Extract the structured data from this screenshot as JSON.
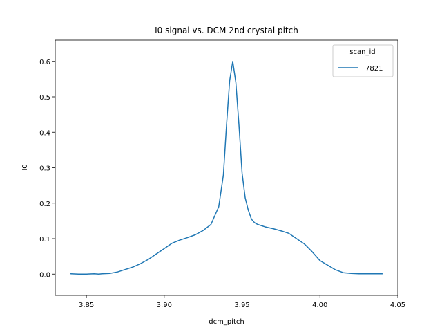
{
  "chart_data": {
    "type": "line",
    "title": "I0 signal vs. DCM 2nd crystal pitch",
    "xlabel": "dcm_pitch",
    "ylabel": "I0",
    "xlim": [
      3.83,
      4.05
    ],
    "ylim": [
      -0.06,
      0.66
    ],
    "xticks": [
      3.85,
      3.9,
      3.95,
      4.0,
      4.05
    ],
    "xtick_labels": [
      "3.85",
      "3.90",
      "3.95",
      "4.00",
      "4.05"
    ],
    "yticks": [
      0.0,
      0.1,
      0.2,
      0.3,
      0.4,
      0.5,
      0.6
    ],
    "ytick_labels": [
      "0.0",
      "0.1",
      "0.2",
      "0.3",
      "0.4",
      "0.5",
      "0.6"
    ],
    "grid": false,
    "legend": {
      "title": "scan_id",
      "placement": "top-right"
    },
    "series": [
      {
        "name": "7821",
        "color": "#1f77b4",
        "x": [
          3.84,
          3.845,
          3.85,
          3.855,
          3.858,
          3.86,
          3.865,
          3.87,
          3.875,
          3.88,
          3.885,
          3.89,
          3.895,
          3.9,
          3.905,
          3.91,
          3.915,
          3.92,
          3.925,
          3.93,
          3.935,
          3.938,
          3.94,
          3.942,
          3.944,
          3.946,
          3.948,
          3.95,
          3.952,
          3.954,
          3.956,
          3.958,
          3.96,
          3.965,
          3.97,
          3.975,
          3.98,
          3.985,
          3.99,
          3.995,
          4.0,
          4.005,
          4.01,
          4.015,
          4.02,
          4.025,
          4.03,
          4.035,
          4.04
        ],
        "y": [
          0.001,
          0.0,
          0.0,
          0.001,
          0.0,
          0.001,
          0.002,
          0.006,
          0.013,
          0.02,
          0.03,
          0.042,
          0.057,
          0.072,
          0.087,
          0.096,
          0.103,
          0.111,
          0.123,
          0.14,
          0.19,
          0.28,
          0.42,
          0.545,
          0.6,
          0.54,
          0.42,
          0.285,
          0.215,
          0.18,
          0.155,
          0.145,
          0.14,
          0.133,
          0.128,
          0.122,
          0.115,
          0.1,
          0.085,
          0.063,
          0.038,
          0.025,
          0.012,
          0.004,
          0.002,
          0.001,
          0.001,
          0.001,
          0.001
        ]
      }
    ]
  }
}
